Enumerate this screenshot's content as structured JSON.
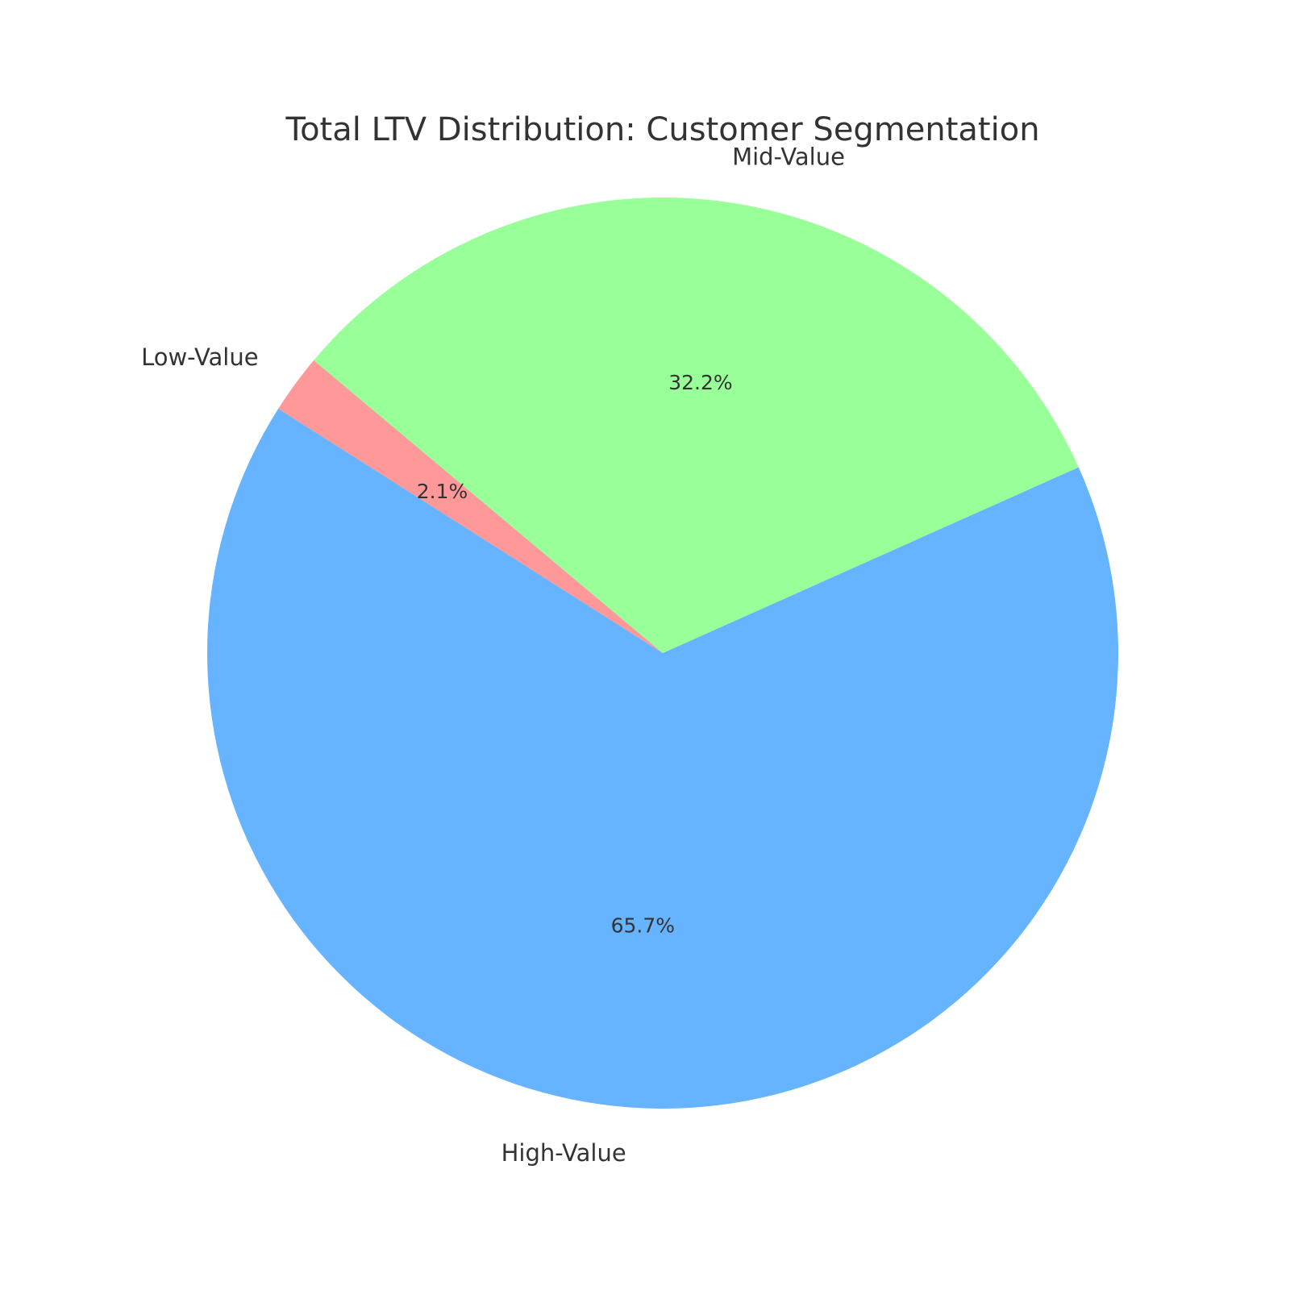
{
  "chart_data": {
    "type": "pie",
    "title": "Total LTV Distribution: Customer Segmentation",
    "start_angle_deg": 140,
    "direction": "counterclockwise",
    "slices": [
      {
        "label": "Low-Value",
        "value": 2.1,
        "pct_label": "2.1%",
        "color": "#ff9999"
      },
      {
        "label": "High-Value",
        "value": 65.7,
        "pct_label": "65.7%",
        "color": "#66b3ff"
      },
      {
        "label": "Mid-Value",
        "value": 32.2,
        "pct_label": "32.2%",
        "color": "#99ff99"
      }
    ]
  }
}
